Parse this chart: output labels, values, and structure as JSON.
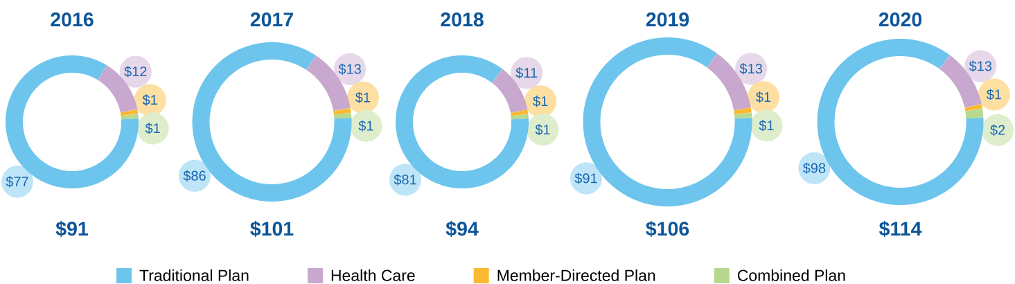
{
  "chart_data": [
    {
      "type": "donut",
      "title": "2016",
      "categories": [
        "Traditional Plan",
        "Health Care",
        "Member-Directed Plan",
        "Combined Plan"
      ],
      "values": [
        77,
        12,
        1,
        1
      ],
      "colors": [
        "#6dc5ed",
        "#c8a8cf",
        "#fbb931",
        "#b6d98e"
      ],
      "value_labels": [
        "$77",
        "$12",
        "$1",
        "$1"
      ],
      "annotations": [
        "$91"
      ],
      "legend": "bottom"
    },
    {
      "type": "donut",
      "title": "2017",
      "categories": [
        null,
        null,
        null,
        null
      ],
      "values": [
        86,
        13,
        1,
        1
      ],
      "colors": [
        "#6dc5ed",
        "#c8a8cf",
        "#fbb931",
        "#b6d98e"
      ],
      "value_labels": [
        "$86",
        "$13",
        "$1",
        "$1"
      ],
      "annotations": [
        "$101"
      ]
    },
    {
      "type": "donut",
      "title": "2018",
      "categories": [
        null,
        null,
        null,
        null
      ],
      "values": [
        81,
        11,
        1,
        1
      ],
      "colors": [
        "#6dc5ed",
        "#c8a8cf",
        "#fbb931",
        "#b6d98e"
      ],
      "value_labels": [
        "$81",
        "$11",
        "$1",
        "$1"
      ],
      "annotations": [
        "$94"
      ]
    },
    {
      "type": "donut",
      "title": "2019",
      "categories": [
        null,
        null,
        null,
        null
      ],
      "values": [
        91,
        13,
        1,
        1
      ],
      "colors": [
        "#6dc5ed",
        "#c8a8cf",
        "#fbb931",
        "#b6d98e"
      ],
      "value_labels": [
        "$91",
        "$13",
        "$1",
        "$1"
      ],
      "annotations": [
        "$106"
      ]
    },
    {
      "type": "donut",
      "title": "2020",
      "categories": [
        null,
        null,
        null,
        null
      ],
      "values": [
        98,
        13,
        1,
        2
      ],
      "colors": [
        "#6dc5ed",
        "#c8a8cf",
        "#fbb931",
        "#b6d98e"
      ],
      "value_labels": [
        "$98",
        "$13",
        "$1",
        "$2"
      ],
      "annotations": [
        "$114"
      ]
    }
  ]
}
